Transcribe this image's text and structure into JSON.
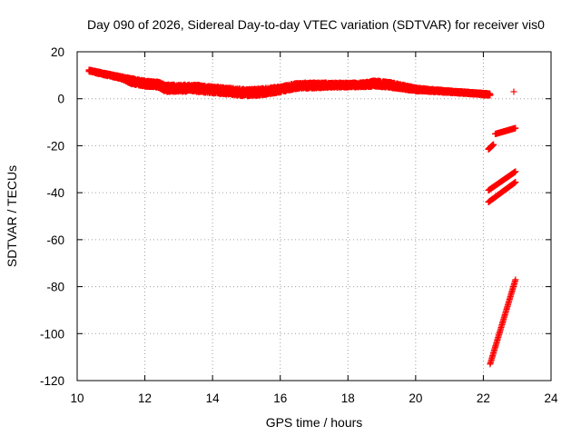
{
  "chart_data": {
    "type": "scatter",
    "title": "Day 090 of 2026, Sidereal Day-to-day VTEC variation (SDTVAR) for receiver vis0",
    "xlabel": "GPS time / hours",
    "ylabel": "SDTVAR / TECUs",
    "xlim": [
      10,
      24
    ],
    "ylim": [
      -120,
      20
    ],
    "xticks": [
      10,
      12,
      14,
      16,
      18,
      20,
      22,
      24
    ],
    "yticks": [
      20,
      0,
      -20,
      -40,
      -60,
      -80,
      -100,
      -120
    ],
    "grid": true,
    "marker": "+",
    "color": "#ff0000",
    "series": [
      {
        "style": "dense-band",
        "x": [
          10.35,
          10.8,
          11.3,
          11.6,
          12.0,
          12.4,
          12.6,
          13.0,
          13.5,
          14.0,
          14.5,
          15.0,
          15.5,
          16.0,
          16.5,
          17.0,
          17.5,
          18.0,
          18.5,
          18.8,
          19.2,
          19.6,
          20.0,
          20.5,
          21.0,
          21.5,
          22.0,
          22.2
        ],
        "y": [
          12,
          10.5,
          9,
          7.5,
          6.5,
          6,
          4.5,
          4.5,
          4.5,
          3.8,
          3.2,
          2.5,
          3,
          4,
          5.5,
          5.7,
          5.8,
          5.8,
          6,
          6.5,
          6,
          5,
          4,
          3.5,
          3,
          2.5,
          2,
          1.8
        ],
        "spread": [
          0.8,
          1,
          1.2,
          2.5,
          2.5,
          2.5,
          3,
          3,
          3,
          3,
          3,
          3,
          3,
          2.5,
          2.5,
          2.5,
          2,
          2,
          2,
          2.5,
          2.5,
          2,
          1.5,
          1.2,
          1,
          1,
          1,
          0.8
        ]
      },
      {
        "style": "point",
        "x": [
          22.9
        ],
        "y": [
          3
        ]
      },
      {
        "style": "segment",
        "x": [
          22.35,
          22.95
        ],
        "y": [
          -15,
          -12.5
        ]
      },
      {
        "style": "segment",
        "x": [
          22.15,
          22.3
        ],
        "y": [
          -21.5,
          -19.5
        ]
      },
      {
        "style": "segment",
        "x": [
          22.15,
          22.95
        ],
        "y": [
          -39,
          -31
        ]
      },
      {
        "style": "segment",
        "x": [
          22.15,
          22.95
        ],
        "y": [
          -44,
          -35.5
        ]
      },
      {
        "style": "segment",
        "x": [
          22.2,
          22.95
        ],
        "y": [
          -113,
          -77
        ]
      }
    ]
  }
}
